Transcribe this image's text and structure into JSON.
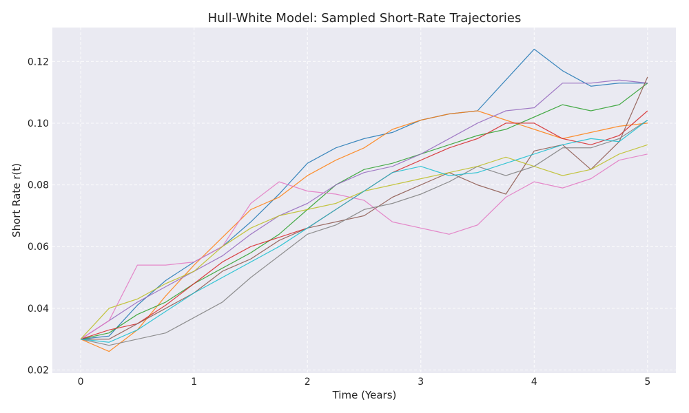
{
  "chart_data": {
    "type": "line",
    "title": "Hull-White Model: Sampled Short-Rate Trajectories",
    "xlabel": "Time (Years)",
    "ylabel": "Short Rate r(t)",
    "xlim": [
      -0.25,
      5.25
    ],
    "ylim": [
      0.019,
      0.131
    ],
    "xticks": [
      0,
      1,
      2,
      3,
      4,
      5
    ],
    "yticks": [
      0.02,
      0.04,
      0.06,
      0.08,
      0.1,
      0.12
    ],
    "ytick_labels": [
      "0.02",
      "0.04",
      "0.06",
      "0.08",
      "0.10",
      "0.12"
    ],
    "grid": true,
    "background": "#eaeaf2",
    "x": [
      0,
      0.25,
      0.5,
      0.75,
      1.0,
      1.25,
      1.5,
      1.75,
      2.0,
      2.25,
      2.5,
      2.75,
      3.0,
      3.25,
      3.5,
      3.75,
      4.0,
      4.25,
      4.5,
      4.75,
      5.0
    ],
    "series": [
      {
        "color": "#1f77b4",
        "values": [
          0.03,
          0.031,
          0.041,
          0.049,
          0.055,
          0.06,
          0.068,
          0.077,
          0.087,
          0.092,
          0.095,
          0.097,
          0.101,
          0.103,
          0.104,
          0.114,
          0.124,
          0.117,
          0.112,
          0.113,
          0.113
        ]
      },
      {
        "color": "#ff7f0e",
        "values": [
          0.03,
          0.026,
          0.033,
          0.044,
          0.054,
          0.063,
          0.072,
          0.076,
          0.083,
          0.088,
          0.092,
          0.098,
          0.101,
          0.103,
          0.104,
          0.101,
          0.098,
          0.095,
          0.097,
          0.099,
          0.1
        ]
      },
      {
        "color": "#2ca02c",
        "values": [
          0.03,
          0.032,
          0.038,
          0.042,
          0.048,
          0.053,
          0.058,
          0.064,
          0.072,
          0.08,
          0.085,
          0.087,
          0.09,
          0.093,
          0.096,
          0.098,
          0.102,
          0.106,
          0.104,
          0.106,
          0.113
        ]
      },
      {
        "color": "#d62728",
        "values": [
          0.03,
          0.033,
          0.035,
          0.041,
          0.048,
          0.055,
          0.06,
          0.063,
          0.066,
          0.072,
          0.078,
          0.084,
          0.088,
          0.092,
          0.095,
          0.1,
          0.1,
          0.095,
          0.093,
          0.096,
          0.104
        ]
      },
      {
        "color": "#9467bd",
        "values": [
          0.03,
          0.036,
          0.042,
          0.047,
          0.052,
          0.057,
          0.064,
          0.07,
          0.074,
          0.08,
          0.084,
          0.086,
          0.09,
          0.095,
          0.1,
          0.104,
          0.105,
          0.113,
          0.113,
          0.114,
          0.113
        ]
      },
      {
        "color": "#8c564b",
        "values": [
          0.03,
          0.03,
          0.035,
          0.04,
          0.045,
          0.052,
          0.056,
          0.062,
          0.066,
          0.068,
          0.07,
          0.076,
          0.08,
          0.084,
          0.08,
          0.077,
          0.091,
          0.093,
          0.085,
          0.094,
          0.115
        ]
      },
      {
        "color": "#e377c2",
        "values": [
          0.03,
          0.036,
          0.054,
          0.054,
          0.055,
          0.06,
          0.074,
          0.081,
          0.078,
          0.077,
          0.075,
          0.068,
          0.066,
          0.064,
          0.067,
          0.076,
          0.081,
          0.079,
          0.082,
          0.088,
          0.09
        ]
      },
      {
        "color": "#7f7f7f",
        "values": [
          0.03,
          0.028,
          0.03,
          0.032,
          0.037,
          0.042,
          0.05,
          0.057,
          0.064,
          0.067,
          0.072,
          0.074,
          0.077,
          0.081,
          0.086,
          0.083,
          0.086,
          0.092,
          0.092,
          0.095,
          0.101
        ]
      },
      {
        "color": "#bcbd22",
        "values": [
          0.03,
          0.04,
          0.043,
          0.048,
          0.052,
          0.06,
          0.066,
          0.07,
          0.072,
          0.074,
          0.078,
          0.08,
          0.082,
          0.084,
          0.086,
          0.089,
          0.086,
          0.083,
          0.085,
          0.09,
          0.093
        ]
      },
      {
        "color": "#17becf",
        "values": [
          0.03,
          0.029,
          0.033,
          0.039,
          0.045,
          0.05,
          0.055,
          0.06,
          0.066,
          0.072,
          0.078,
          0.084,
          0.086,
          0.083,
          0.084,
          0.087,
          0.09,
          0.093,
          0.095,
          0.094,
          0.101
        ]
      }
    ]
  }
}
